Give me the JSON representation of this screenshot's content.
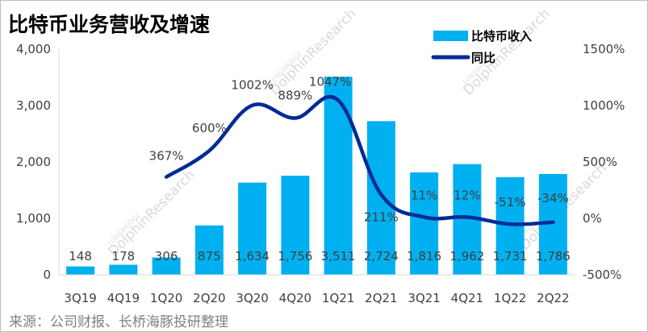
{
  "chart_data": {
    "type": "bar",
    "title": "比特币业务营收及增速",
    "categories": [
      "3Q19",
      "4Q19",
      "1Q20",
      "2Q20",
      "3Q20",
      "4Q20",
      "1Q21",
      "2Q21",
      "3Q21",
      "4Q21",
      "1Q22",
      "2Q22"
    ],
    "series": [
      {
        "name": "比特币收入",
        "type": "bar",
        "axis": "left",
        "color": "#00b0f0",
        "values": [
          148,
          178,
          306,
          875,
          1634,
          1756,
          3511,
          2724,
          1816,
          1962,
          1731,
          1786
        ],
        "value_labels": [
          "148",
          "178",
          "306",
          "875",
          "1,634",
          "1,756",
          "3,511",
          "2,724",
          "1,816",
          "1,962",
          "1,731",
          "1,786"
        ]
      },
      {
        "name": "同比",
        "type": "line",
        "axis": "right",
        "color": "#002b95",
        "values": [
          null,
          null,
          367,
          600,
          1002,
          889,
          1047,
          211,
          11,
          12,
          -51,
          -34
        ],
        "value_labels": [
          "",
          "",
          "367%",
          "600%",
          "1002%",
          "889%",
          "1047%",
          "211%",
          "11%",
          "12%",
          "-51%",
          "-34%"
        ]
      }
    ],
    "left_axis": {
      "ylim": [
        0,
        4000
      ],
      "ticks": [
        0,
        1000,
        2000,
        3000,
        4000
      ],
      "tick_labels": [
        "0",
        "1,000",
        "2,000",
        "3,000",
        "4,000"
      ]
    },
    "right_axis": {
      "ylim": [
        -500,
        1500
      ],
      "ticks": [
        -500,
        0,
        500,
        1000,
        1500
      ],
      "tick_labels": [
        "-500%",
        "0%",
        "500%",
        "1000%",
        "1500%"
      ]
    },
    "grid": false,
    "legend_position": "top-right",
    "source": "来源：公司财报、长桥海豚投研整理",
    "watermark": {
      "text": "DolphinResearch",
      "small_text": "LONGBRIDGE",
      "color": "#d9d9d9"
    }
  }
}
